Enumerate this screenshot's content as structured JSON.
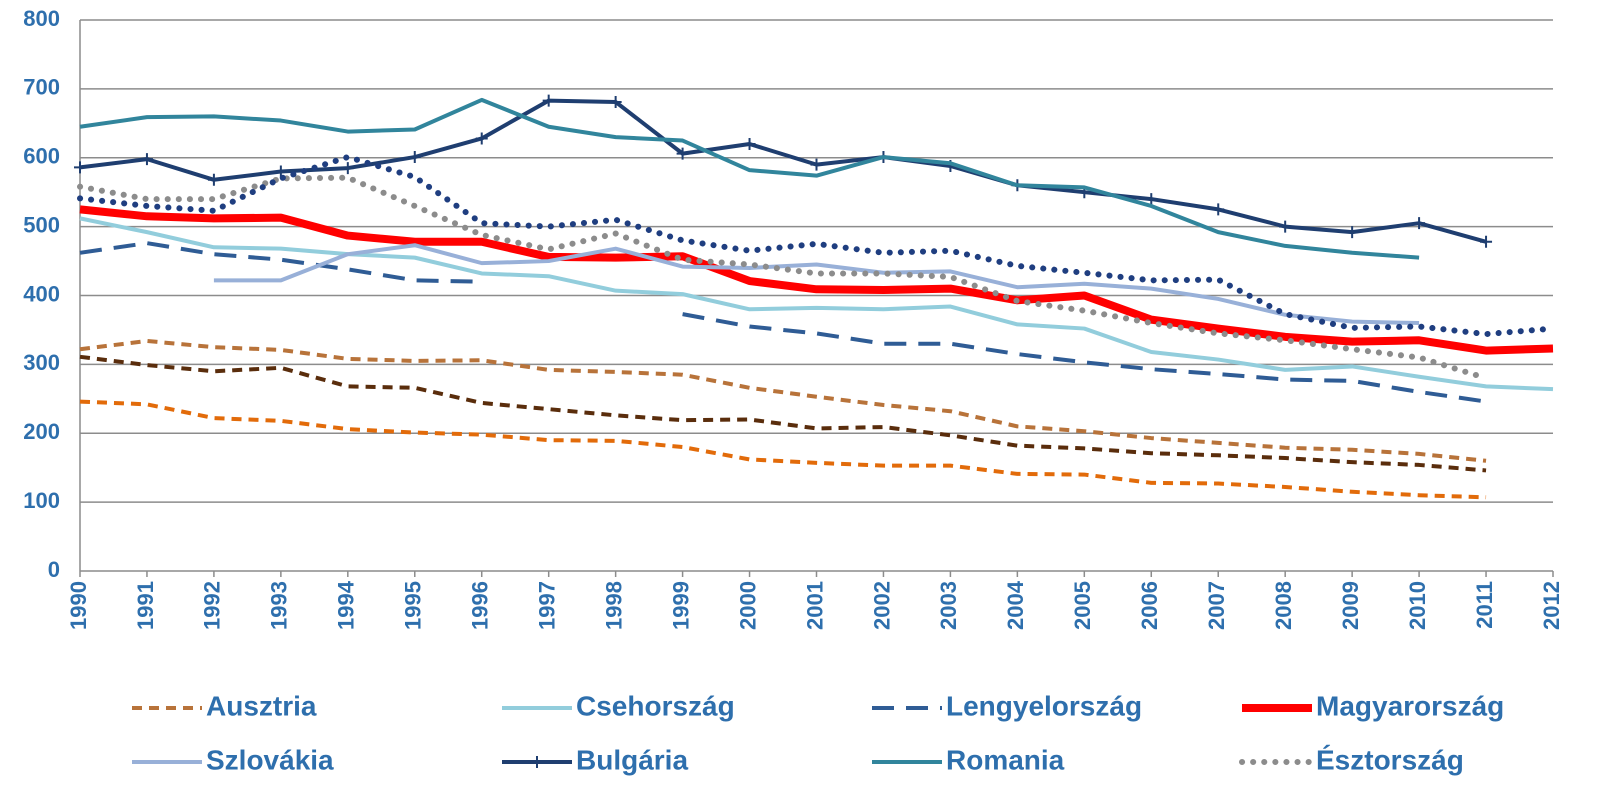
{
  "chart_data": {
    "type": "line",
    "categories": [
      "1990",
      "1991",
      "1992",
      "1993",
      "1994",
      "1995",
      "1996",
      "1997",
      "1998",
      "1999",
      "2000",
      "2001",
      "2002",
      "2003",
      "2004",
      "2005",
      "2006",
      "2007",
      "2008",
      "2009",
      "2010",
      "2011",
      "2012"
    ],
    "ylim": [
      0,
      800
    ],
    "yticks": [
      0,
      100,
      200,
      300,
      400,
      500,
      600,
      700,
      800
    ],
    "grid": true,
    "series": [
      {
        "name": "Ausztria",
        "color": "#b8733a",
        "style": "dashed",
        "values": [
          322,
          334,
          325,
          321,
          308,
          305,
          306,
          292,
          289,
          285,
          266,
          253,
          241,
          232,
          210,
          203,
          193,
          186,
          179,
          176,
          170,
          160,
          null
        ]
      },
      {
        "name": "Csehország",
        "color": "#92cddc",
        "style": "solid",
        "values": [
          512,
          492,
          470,
          468,
          460,
          455,
          432,
          428,
          407,
          402,
          380,
          382,
          380,
          384,
          358,
          352,
          318,
          307,
          292,
          297,
          282,
          268,
          264
        ]
      },
      {
        "name": "Lengyelország",
        "color": "#2f5c95",
        "style": "longdash",
        "values": [
          462,
          476,
          460,
          452,
          438,
          422,
          420,
          null,
          null,
          373,
          355,
          345,
          330,
          330,
          315,
          303,
          293,
          286,
          278,
          276,
          260,
          246,
          null
        ]
      },
      {
        "name": "Magyarország",
        "color": "#ff0000",
        "style": "thick",
        "values": [
          525,
          515,
          512,
          513,
          487,
          478,
          478,
          456,
          455,
          457,
          421,
          409,
          408,
          410,
          393,
          400,
          365,
          352,
          340,
          333,
          335,
          320,
          323
        ]
      },
      {
        "name": "Szlovákia",
        "color": "#98b0d8",
        "style": "solid",
        "values": [
          null,
          null,
          422,
          422,
          460,
          473,
          447,
          450,
          468,
          442,
          440,
          445,
          433,
          435,
          412,
          417,
          410,
          395,
          372,
          362,
          360,
          null,
          null
        ]
      },
      {
        "name": "Bulgária",
        "color": "#1f3e70",
        "style": "solid",
        "marker": "plus",
        "values": [
          586,
          598,
          568,
          580,
          585,
          601,
          628,
          683,
          681,
          606,
          620,
          590,
          601,
          588,
          560,
          550,
          540,
          525,
          500,
          492,
          505,
          478,
          null
        ]
      },
      {
        "name": "Romania",
        "color": "#31859c",
        "style": "solid",
        "values": [
          645,
          659,
          660,
          654,
          638,
          641,
          684,
          645,
          630,
          625,
          582,
          574,
          601,
          592,
          560,
          557,
          530,
          492,
          472,
          462,
          455,
          null,
          null
        ]
      },
      {
        "name": "Észtország",
        "color": "#8c8c8c",
        "style": "dotted",
        "values": [
          558,
          540,
          540,
          570,
          571,
          530,
          488,
          467,
          490,
          452,
          445,
          432,
          432,
          427,
          392,
          378,
          360,
          345,
          335,
          322,
          310,
          280,
          null
        ]
      },
      {
        "color": "#5a2d0c",
        "style": "dashed",
        "values": [
          311,
          299,
          290,
          295,
          268,
          266,
          244,
          235,
          226,
          219,
          220,
          207,
          209,
          197,
          182,
          178,
          171,
          168,
          164,
          158,
          154,
          146,
          null
        ]
      },
      {
        "color": "#e26b0a",
        "style": "dashed",
        "values": [
          246,
          242,
          222,
          218,
          206,
          201,
          198,
          190,
          189,
          180,
          162,
          157,
          153,
          153,
          141,
          140,
          128,
          127,
          122,
          115,
          110,
          107,
          null
        ]
      },
      {
        "color": "#1f3e80",
        "style": "dotted",
        "values": [
          541,
          530,
          523,
          570,
          601,
          572,
          505,
          500,
          510,
          480,
          465,
          475,
          462,
          465,
          443,
          433,
          422,
          423,
          373,
          353,
          355,
          344,
          352
        ]
      }
    ]
  }
}
